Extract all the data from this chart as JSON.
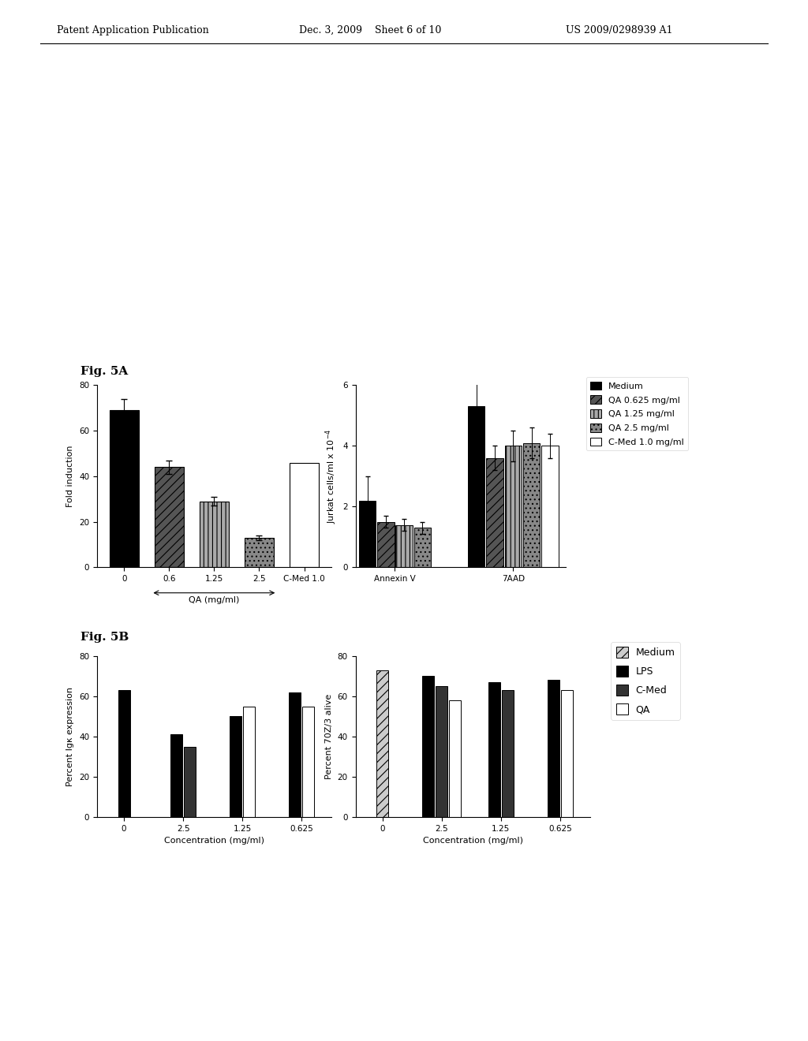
{
  "header_left": "Patent Application Publication",
  "header_center": "Dec. 3, 2009    Sheet 6 of 10",
  "header_right": "US 2009/0298939 A1",
  "fig5a_label": "Fig. 5A",
  "fig5b_label": "Fig. 5B",
  "fig5a_left": {
    "ylabel": "Fold induction",
    "xlabel": "QA (mg/ml)",
    "ylim": [
      0,
      80
    ],
    "yticks": [
      0,
      20,
      40,
      60,
      80
    ],
    "categories": [
      "0",
      "0.6",
      "1.25",
      "2.5",
      "C-Med 1.0"
    ],
    "values": [
      69,
      44,
      29,
      13,
      46
    ],
    "errors": [
      5,
      3,
      2,
      1,
      0
    ],
    "colors": [
      "#000000",
      "#555555",
      "#aaaaaa",
      "#888888",
      "#ffffff"
    ],
    "hatches": [
      "",
      "///",
      "|||",
      "...",
      ""
    ]
  },
  "fig5a_right": {
    "ylabel": "Jurkat cells/ml x 10$^{-4}$",
    "ylim": [
      0,
      6
    ],
    "yticks": [
      0,
      2,
      4,
      6
    ],
    "annex_vals": [
      2.2,
      1.5,
      1.4,
      1.3
    ],
    "annex_errs": [
      0.8,
      0.2,
      0.2,
      0.2
    ],
    "aad_vals": [
      5.3,
      3.6,
      4.0,
      4.1,
      4.0
    ],
    "aad_errs": [
      1.5,
      0.4,
      0.5,
      0.5,
      0.4
    ],
    "colors": [
      "#000000",
      "#555555",
      "#aaaaaa",
      "#888888",
      "#ffffff"
    ],
    "hatches": [
      "",
      "///",
      "|||",
      "...",
      ""
    ]
  },
  "fig5a_legend": {
    "entries": [
      "Medium",
      "QA 0.625 mg/ml",
      "QA 1.25 mg/ml",
      "QA 2.5 mg/ml",
      "C-Med 1.0 mg/ml"
    ],
    "colors": [
      "#000000",
      "#555555",
      "#aaaaaa",
      "#888888",
      "#ffffff"
    ],
    "hatches": [
      "",
      "///",
      "|||",
      "...",
      ""
    ]
  },
  "fig5b_left": {
    "ylabel": "Percent Igκ expression",
    "xlabel": "Concentration (mg/ml)",
    "ylim": [
      0,
      80
    ],
    "yticks": [
      0,
      20,
      40,
      60,
      80
    ],
    "categories": [
      "0",
      "2.5",
      "1.25",
      "0.625"
    ],
    "groups_per_cat": {
      "0": [
        [
          "LPS",
          63,
          "#000000",
          ""
        ]
      ],
      "2.5": [
        [
          "LPS",
          41,
          "#000000",
          ""
        ],
        [
          "C-Med",
          35,
          "#333333",
          ""
        ],
        [
          "QA",
          0,
          "#ffffff",
          ""
        ]
      ],
      "1.25": [
        [
          "LPS",
          50,
          "#000000",
          ""
        ],
        [
          "C-Med",
          0,
          "#333333",
          ""
        ],
        [
          "QA",
          55,
          "#ffffff",
          ""
        ]
      ],
      "0.625": [
        [
          "LPS",
          62,
          "#000000",
          ""
        ],
        [
          "C-Med",
          0,
          "#333333",
          ""
        ],
        [
          "QA",
          55,
          "#ffffff",
          ""
        ]
      ]
    }
  },
  "fig5b_right": {
    "ylabel": "Percent 70Z/3 alive",
    "xlabel": "Concentration (mg/ml)",
    "ylim": [
      0,
      80
    ],
    "yticks": [
      0,
      20,
      40,
      60,
      80
    ],
    "categories": [
      "0",
      "2.5",
      "1.25",
      "0.625"
    ],
    "groups_per_cat": {
      "0": [
        [
          "Medium",
          73,
          "#cccccc",
          "///"
        ]
      ],
      "2.5": [
        [
          "LPS",
          70,
          "#000000",
          ""
        ],
        [
          "C-Med",
          65,
          "#333333",
          ""
        ],
        [
          "QA",
          58,
          "#ffffff",
          ""
        ]
      ],
      "1.25": [
        [
          "LPS",
          67,
          "#000000",
          ""
        ],
        [
          "C-Med",
          63,
          "#333333",
          ""
        ],
        [
          "QA",
          0,
          "#ffffff",
          ""
        ]
      ],
      "0.625": [
        [
          "LPS",
          68,
          "#000000",
          ""
        ],
        [
          "C-Med",
          0,
          "#333333",
          ""
        ],
        [
          "QA",
          63,
          "#ffffff",
          ""
        ]
      ]
    }
  },
  "fig5b_legend": {
    "entries": [
      "Medium",
      "LPS",
      "C-Med",
      "QA"
    ],
    "colors": [
      "#cccccc",
      "#000000",
      "#333333",
      "#ffffff"
    ],
    "hatches": [
      "///",
      "",
      "",
      ""
    ]
  }
}
